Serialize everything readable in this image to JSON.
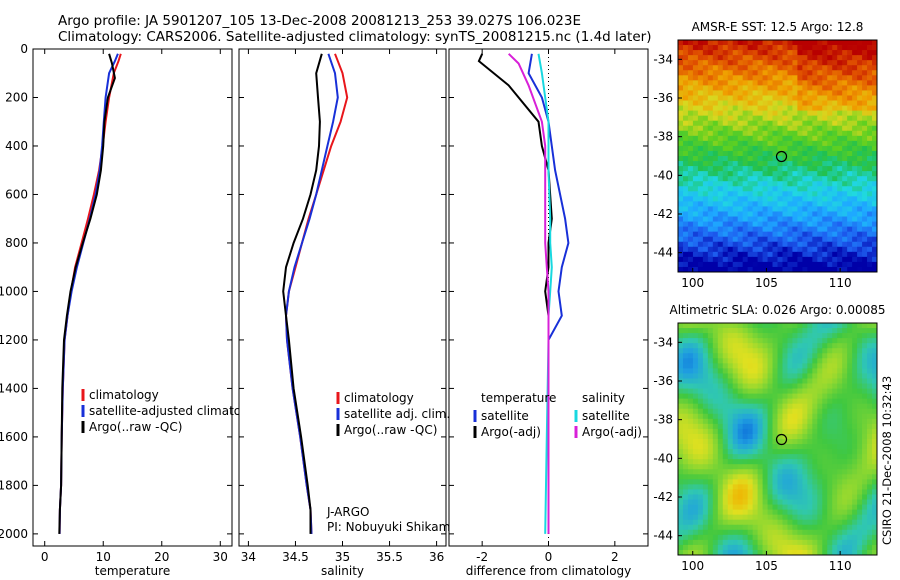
{
  "title": {
    "line1": "Argo profile: JA 5901207_105 13-Dec-2008 20081213_253 39.027S 106.023E",
    "line2": "Climatology: CARS2006. Satellite-adjusted climatology: synTS_20081215.nc (1.4d later)"
  },
  "footer": {
    "side_text": "CSIRO 21-Dec-2008 10:32:43"
  },
  "chart_data": [
    {
      "type": "line",
      "xlabel": "temperature",
      "ylim": [
        2050,
        0
      ],
      "xlim": [
        -2,
        32
      ],
      "xticks": [
        0,
        10,
        20,
        30
      ],
      "yticks": [
        0,
        200,
        400,
        600,
        800,
        1000,
        1200,
        1400,
        1600,
        1800,
        2000
      ],
      "legend": [
        "climatology",
        "satellite-adjusted climatology",
        "Argo(..raw -QC)"
      ],
      "legend_position": "lower-right",
      "series": [
        {
          "name": "climatology",
          "color": "#e8161b",
          "x": [
            13.0,
            12.6,
            11.8,
            11.0,
            10.4,
            9.9,
            9.3,
            8.4,
            7.4,
            6.3,
            5.2,
            4.5,
            3.9,
            3.4,
            3.1,
            2.9,
            2.8,
            2.6,
            2.55
          ],
          "y": [
            20,
            50,
            100,
            200,
            300,
            400,
            500,
            600,
            700,
            800,
            900,
            1000,
            1100,
            1200,
            1400,
            1600,
            1800,
            1900,
            2000
          ]
        },
        {
          "name": "satellite-adjusted climatology",
          "color": "#1830d8",
          "x": [
            12.5,
            12.0,
            11.0,
            10.4,
            10.1,
            9.8,
            9.4,
            8.7,
            7.7,
            6.6,
            5.5,
            4.6,
            3.9,
            3.4,
            3.1,
            2.9,
            2.8,
            2.6,
            2.55
          ],
          "y": [
            20,
            50,
            100,
            200,
            300,
            400,
            500,
            600,
            700,
            800,
            900,
            1000,
            1100,
            1200,
            1400,
            1600,
            1800,
            1900,
            2000
          ]
        },
        {
          "name": "Argo(..raw -QC)",
          "color": "#000000",
          "x": [
            11.0,
            11.5,
            12.0,
            10.8,
            10.2,
            10.0,
            9.6,
            8.9,
            7.8,
            6.5,
            5.3,
            4.4,
            3.8,
            3.3,
            3.0,
            2.9,
            2.8,
            2.6,
            2.5
          ],
          "y": [
            20,
            60,
            120,
            200,
            300,
            400,
            500,
            600,
            700,
            800,
            900,
            1000,
            1100,
            1200,
            1400,
            1600,
            1800,
            1900,
            2000
          ]
        }
      ]
    },
    {
      "type": "line",
      "xlabel": "salinity",
      "ylim": [
        2050,
        0
      ],
      "xlim": [
        33.9,
        36.1
      ],
      "xticks": [
        34,
        34.5,
        35,
        35.5,
        36
      ],
      "legend": [
        "climatology",
        "satellite adj. clim.",
        "Argo(..raw -QC)"
      ],
      "legend_position": "lower-right",
      "annotation": [
        "J-ARGO",
        "PI: Nobuyuki Shikama"
      ],
      "series": [
        {
          "name": "climatology",
          "color": "#e8161b",
          "x": [
            34.92,
            35.0,
            35.05,
            34.98,
            34.88,
            34.8,
            34.72,
            34.64,
            34.57,
            34.5,
            34.43,
            34.4,
            34.41,
            34.47,
            34.55,
            34.62,
            34.66,
            34.67
          ],
          "y": [
            20,
            100,
            200,
            300,
            400,
            500,
            600,
            700,
            800,
            900,
            1000,
            1100,
            1200,
            1400,
            1600,
            1800,
            1900,
            2000
          ]
        },
        {
          "name": "satellite adj. clim.",
          "color": "#1830d8",
          "x": [
            34.85,
            34.92,
            34.95,
            34.9,
            34.84,
            34.78,
            34.72,
            34.65,
            34.57,
            34.49,
            34.43,
            34.4,
            34.41,
            34.47,
            34.55,
            34.62,
            34.66,
            34.67
          ],
          "y": [
            20,
            100,
            200,
            300,
            400,
            500,
            600,
            700,
            800,
            900,
            1000,
            1100,
            1200,
            1400,
            1600,
            1800,
            1900,
            2000
          ]
        },
        {
          "name": "Argo(..raw -QC)",
          "color": "#000000",
          "x": [
            34.78,
            34.72,
            34.74,
            34.76,
            34.75,
            34.72,
            34.66,
            34.58,
            34.48,
            34.4,
            34.37,
            34.4,
            34.43,
            34.48,
            34.56,
            34.63,
            34.66,
            34.66
          ],
          "y": [
            20,
            100,
            200,
            300,
            400,
            500,
            600,
            700,
            800,
            900,
            1000,
            1100,
            1200,
            1400,
            1600,
            1800,
            1900,
            2000
          ]
        }
      ]
    },
    {
      "type": "line",
      "xlabel": "difference from climatology",
      "ylim": [
        2050,
        0
      ],
      "xlim": [
        -3,
        3
      ],
      "xticks": [
        -2,
        0,
        2
      ],
      "zero_line": true,
      "legend_headers": [
        "temperature",
        "salinity"
      ],
      "legend": [
        "satellite",
        "Argo(-adj)",
        "satellite",
        "Argo(-adj)"
      ],
      "legend_position": "lower-right",
      "series": [
        {
          "name": "temperature satellite",
          "color": "#1830d8",
          "x": [
            -0.5,
            -0.6,
            -0.2,
            0.0,
            0.1,
            0.2,
            0.5,
            0.6,
            0.4,
            0.3,
            0.4,
            0.0,
            0.0,
            0.0
          ],
          "y": [
            20,
            100,
            200,
            300,
            400,
            500,
            700,
            800,
            900,
            1000,
            1100,
            1200,
            1600,
            2000
          ]
        },
        {
          "name": "temperature Argo(-adj)",
          "color": "#000000",
          "x": [
            -2.0,
            -2.1,
            -1.2,
            -0.3,
            -0.2,
            0.0,
            0.1,
            0.0,
            0.0,
            -0.1,
            0.0,
            0.0,
            0.0,
            0.0
          ],
          "y": [
            20,
            50,
            150,
            300,
            400,
            500,
            700,
            800,
            900,
            1000,
            1100,
            1200,
            1600,
            2000
          ]
        },
        {
          "name": "salinity satellite",
          "color": "#18d8e0",
          "x": [
            -0.3,
            -0.2,
            -0.1,
            0.0,
            0.0,
            0.0,
            0.05,
            0.05,
            0.1,
            0.05,
            0.0,
            0.0,
            -0.05,
            -0.1
          ],
          "y": [
            20,
            100,
            200,
            300,
            400,
            500,
            700,
            800,
            900,
            1000,
            1100,
            1200,
            1600,
            2000
          ]
        },
        {
          "name": "salinity Argo(-adj)",
          "color": "#d820d8",
          "x": [
            -1.2,
            -0.9,
            -0.6,
            -0.2,
            -0.1,
            -0.1,
            -0.1,
            -0.1,
            -0.05,
            0.0,
            0.0,
            0.0,
            0.0,
            0.0
          ],
          "y": [
            20,
            60,
            150,
            300,
            400,
            500,
            700,
            800,
            900,
            1000,
            1100,
            1200,
            1600,
            2000
          ]
        }
      ]
    },
    {
      "type": "heatmap",
      "title": "AMSR-E SST: 12.5 Argo: 12.8",
      "xlim": [
        99,
        112.5
      ],
      "ylim": [
        -45,
        -33
      ],
      "xticks": [
        100,
        105,
        110
      ],
      "yticks": [
        -34,
        -36,
        -38,
        -40,
        -42,
        -44
      ],
      "marker": {
        "lon": 106.023,
        "lat": -39.027
      },
      "palette": [
        "#0000a8",
        "#1e5ef0",
        "#1eaaff",
        "#20d8e0",
        "#20c050",
        "#60d020",
        "#d8d820",
        "#f0a000",
        "#e05000",
        "#b80000"
      ]
    },
    {
      "type": "heatmap",
      "title": "Altimetric SLA: 0.026 Argo: 0.00085",
      "xlim": [
        99,
        112.5
      ],
      "ylim": [
        -45,
        -33
      ],
      "xticks": [
        100,
        105,
        110
      ],
      "yticks": [
        -34,
        -36,
        -38,
        -40,
        -42,
        -44
      ],
      "marker": {
        "lon": 106.023,
        "lat": -39.027
      },
      "palette": [
        "#0050d8",
        "#20a0e0",
        "#30c8b0",
        "#40c840",
        "#90d830",
        "#e0e020",
        "#f0b000",
        "#f08000"
      ]
    }
  ]
}
